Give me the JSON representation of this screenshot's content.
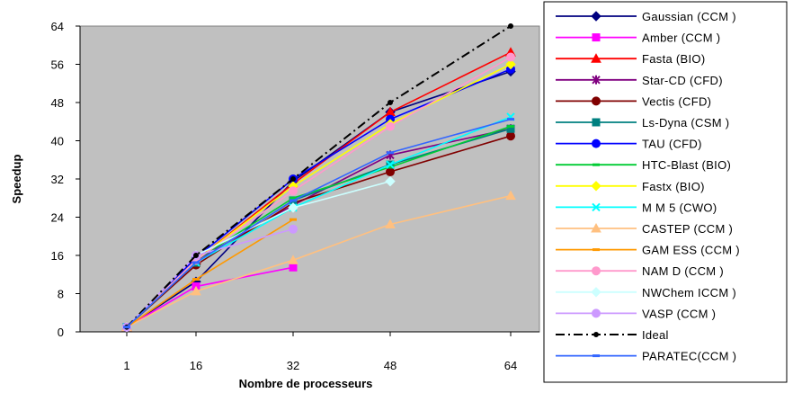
{
  "chart_data": {
    "type": "line",
    "title": "",
    "xlabel": "Nombre de processeurs",
    "ylabel": "Speedup",
    "categories": [
      "1",
      "16",
      "32",
      "48",
      "64"
    ],
    "yticks": [
      "0",
      "8",
      "16",
      "24",
      "32",
      "40",
      "48",
      "56",
      "64"
    ],
    "ylim": [
      0,
      64
    ],
    "grid": false,
    "plot_background": "#c0c0c0",
    "legend_position": "right",
    "series": [
      {
        "name": "Gaussian (CCM )",
        "color": "#000080",
        "marker": "diamond",
        "dash": "solid",
        "values": [
          1,
          10.5,
          31.5,
          46,
          54.5
        ]
      },
      {
        "name": "Amber (CCM )",
        "color": "#ff00ff",
        "marker": "square",
        "dash": "solid",
        "values": [
          1,
          9.5,
          13.5,
          null,
          null
        ]
      },
      {
        "name": "Fasta (BIO)",
        "color": "#ff0000",
        "marker": "triangle",
        "dash": "solid",
        "values": [
          1,
          15,
          31,
          46,
          58.5
        ]
      },
      {
        "name": "Star-CD (CFD)",
        "color": "#800080",
        "marker": "star",
        "dash": "solid",
        "values": [
          1,
          15,
          26.5,
          37,
          42.5
        ]
      },
      {
        "name": "Vectis (CFD)",
        "color": "#800000",
        "marker": "circle",
        "dash": "solid",
        "values": [
          1,
          14,
          27,
          33.5,
          41
        ]
      },
      {
        "name": "Ls-Dyna (CSM )",
        "color": "#008080",
        "marker": "square",
        "dash": "solid",
        "values": [
          1,
          14.5,
          27.5,
          35,
          42.5
        ]
      },
      {
        "name": "TAU (CFD)",
        "color": "#0000ff",
        "marker": "circle",
        "dash": "solid",
        "values": [
          1,
          15.5,
          32,
          44.5,
          55
        ]
      },
      {
        "name": "HTC-Blast (BIO)",
        "color": "#00cc33",
        "marker": "dash",
        "dash": "solid",
        "values": [
          1,
          15,
          28,
          34.5,
          43
        ]
      },
      {
        "name": "Fastx (BIO)",
        "color": "#ffff00",
        "marker": "diamond",
        "dash": "solid",
        "values": [
          1,
          15,
          30.5,
          43.5,
          56
        ]
      },
      {
        "name": "M M 5 (CWO)",
        "color": "#00ffff",
        "marker": "x",
        "dash": "solid",
        "values": [
          1,
          14.5,
          26,
          35,
          45
        ]
      },
      {
        "name": "CASTEP (CCM )",
        "color": "#ffc080",
        "marker": "triangle",
        "dash": "solid",
        "values": [
          1,
          8.5,
          15,
          22.5,
          28.5
        ]
      },
      {
        "name": "GAM ESS (CCM )",
        "color": "#ff9900",
        "marker": "dash",
        "dash": "solid",
        "values": [
          1,
          11,
          23.5,
          null,
          null
        ]
      },
      {
        "name": "NAM D (CCM )",
        "color": "#ff99cc",
        "marker": "circle",
        "dash": "solid",
        "values": [
          1,
          15,
          29.5,
          43,
          57.5
        ]
      },
      {
        "name": "NWChem ICCM )",
        "color": "#ccffff",
        "marker": "diamond",
        "dash": "solid",
        "values": [
          1,
          16,
          26,
          31.5,
          null
        ]
      },
      {
        "name": "VASP (CCM )",
        "color": "#cc99ff",
        "marker": "circle",
        "dash": "solid",
        "values": [
          1,
          16,
          21.5,
          null,
          null
        ]
      },
      {
        "name": "Ideal",
        "color": "#000000",
        "marker": "dot",
        "dash": "dashdot",
        "values": [
          1,
          16,
          32,
          48,
          64
        ]
      },
      {
        "name": "PARATEC(CCM )",
        "color": "#3366ff",
        "marker": "dash",
        "dash": "solid",
        "values": [
          1,
          14.5,
          27.5,
          37.5,
          44.5
        ]
      }
    ]
  }
}
